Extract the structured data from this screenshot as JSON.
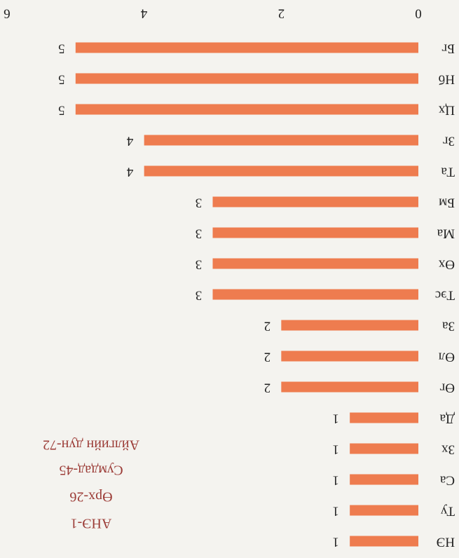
{
  "chart_data": {
    "type": "bar",
    "orientation": "horizontal",
    "categories": [
      "НЭ",
      "Ту",
      "Са",
      "Зх",
      "Да",
      "Өг",
      "Өл",
      "За",
      "Тэс",
      "Өх",
      "Ма",
      "Бм",
      "Та",
      "Зг",
      "Цх",
      "Нб",
      "Бг"
    ],
    "values": [
      1,
      1,
      1,
      1,
      1,
      2,
      2,
      2,
      3,
      3,
      3,
      3,
      4,
      4,
      5,
      5,
      5
    ],
    "color": "#ee7c4f",
    "xlim": [
      0,
      6
    ],
    "xticks": [
      0,
      2,
      4,
      6
    ],
    "annotations": [
      "АНЭ-1",
      "Өрх-26",
      "Сумдад-45",
      "Айлгийн дун-72"
    ],
    "annotation_color": "#9b3b36"
  }
}
